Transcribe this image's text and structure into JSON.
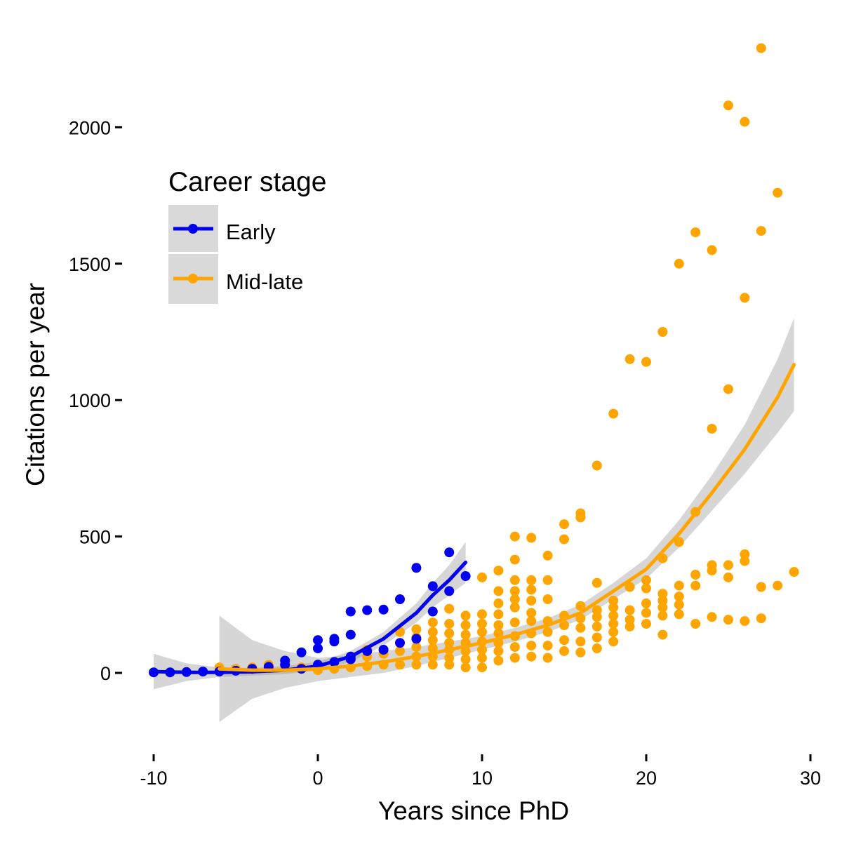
{
  "chart_data": {
    "type": "scatter",
    "title": "",
    "xlabel": "Years since PhD",
    "ylabel": "Citations per year",
    "xlim": [
      -10.8,
      30
    ],
    "ylim": [
      -280,
      2330
    ],
    "x_ticks": [
      -10,
      0,
      10,
      20,
      30
    ],
    "y_ticks": [
      0,
      500,
      1000,
      1500,
      2000
    ],
    "grid": false,
    "legend": {
      "title": "Career stage",
      "placement": "upper-left"
    },
    "series": [
      {
        "name": "Early",
        "color": "#0000ee",
        "points": [
          [
            -10,
            2
          ],
          [
            -9,
            2
          ],
          [
            -8,
            3
          ],
          [
            -7,
            5
          ],
          [
            -6,
            5
          ],
          [
            -5,
            8
          ],
          [
            -4,
            15
          ],
          [
            -3,
            22
          ],
          [
            -2,
            30
          ],
          [
            -2,
            45
          ],
          [
            -1,
            15
          ],
          [
            -1,
            75
          ],
          [
            0,
            30
          ],
          [
            0,
            90
          ],
          [
            0,
            120
          ],
          [
            1,
            40
          ],
          [
            1,
            115
          ],
          [
            1,
            125
          ],
          [
            2,
            50
          ],
          [
            2,
            60
          ],
          [
            2,
            140
          ],
          [
            2,
            225
          ],
          [
            3,
            80
          ],
          [
            3,
            230
          ],
          [
            4,
            85
          ],
          [
            4,
            232
          ],
          [
            5,
            110
          ],
          [
            5,
            270
          ],
          [
            6,
            125
          ],
          [
            6,
            385
          ],
          [
            7,
            225
          ],
          [
            7,
            318
          ],
          [
            8,
            300
          ],
          [
            8,
            442
          ],
          [
            9,
            355
          ]
        ],
        "fit": [
          [
            -10,
            5
          ],
          [
            -8,
            2
          ],
          [
            -6,
            2
          ],
          [
            -4,
            4
          ],
          [
            -2,
            10
          ],
          [
            0,
            25
          ],
          [
            2,
            60
          ],
          [
            4,
            125
          ],
          [
            6,
            220
          ],
          [
            7,
            285
          ],
          [
            8,
            340
          ],
          [
            9,
            405
          ]
        ],
        "fit_band": [
          [
            -10,
            -60,
            70
          ],
          [
            -8,
            -30,
            35
          ],
          [
            -6,
            -15,
            20
          ],
          [
            -4,
            -10,
            18
          ],
          [
            -2,
            -5,
            25
          ],
          [
            0,
            10,
            40
          ],
          [
            2,
            40,
            80
          ],
          [
            4,
            100,
            150
          ],
          [
            6,
            185,
            255
          ],
          [
            7,
            240,
            330
          ],
          [
            8,
            285,
            395
          ],
          [
            9,
            330,
            480
          ]
        ]
      },
      {
        "name": "Mid-late",
        "color": "#ffa500",
        "points": [
          [
            -6,
            20
          ],
          [
            -5,
            15
          ],
          [
            -4,
            20
          ],
          [
            -3,
            30
          ],
          [
            -2,
            25
          ],
          [
            -1,
            20
          ],
          [
            0,
            10
          ],
          [
            0,
            30
          ],
          [
            1,
            15
          ],
          [
            1,
            40
          ],
          [
            2,
            20
          ],
          [
            2,
            50
          ],
          [
            3,
            25
          ],
          [
            3,
            60
          ],
          [
            3,
            85
          ],
          [
            4,
            30
          ],
          [
            4,
            70
          ],
          [
            5,
            30
          ],
          [
            5,
            80
          ],
          [
            5,
            150
          ],
          [
            6,
            30
          ],
          [
            6,
            60
          ],
          [
            6,
            95
          ],
          [
            6,
            130
          ],
          [
            6,
            160
          ],
          [
            7,
            30
          ],
          [
            7,
            60
          ],
          [
            7,
            90
          ],
          [
            7,
            120
          ],
          [
            7,
            150
          ],
          [
            7,
            185
          ],
          [
            8,
            30
          ],
          [
            8,
            55
          ],
          [
            8,
            85
          ],
          [
            8,
            110
          ],
          [
            8,
            145
          ],
          [
            8,
            180
          ],
          [
            8,
            235
          ],
          [
            9,
            20
          ],
          [
            9,
            50
          ],
          [
            9,
            80
          ],
          [
            9,
            110
          ],
          [
            9,
            140
          ],
          [
            9,
            175
          ],
          [
            9,
            210
          ],
          [
            10,
            20
          ],
          [
            10,
            55
          ],
          [
            10,
            85
          ],
          [
            10,
            115
          ],
          [
            10,
            150
          ],
          [
            10,
            180
          ],
          [
            10,
            215
          ],
          [
            10,
            350
          ],
          [
            11,
            45
          ],
          [
            11,
            80
          ],
          [
            11,
            110
          ],
          [
            11,
            145
          ],
          [
            11,
            175
          ],
          [
            11,
            215
          ],
          [
            11,
            255
          ],
          [
            11,
            300
          ],
          [
            11,
            375
          ],
          [
            12,
            55
          ],
          [
            12,
            95
          ],
          [
            12,
            135
          ],
          [
            12,
            185
          ],
          [
            12,
            240
          ],
          [
            12,
            270
          ],
          [
            12,
            300
          ],
          [
            12,
            340
          ],
          [
            12,
            415
          ],
          [
            12,
            500
          ],
          [
            13,
            60
          ],
          [
            13,
            100
          ],
          [
            13,
            145
          ],
          [
            13,
            190
          ],
          [
            13,
            220
          ],
          [
            13,
            265
          ],
          [
            13,
            305
          ],
          [
            13,
            340
          ],
          [
            13,
            495
          ],
          [
            14,
            55
          ],
          [
            14,
            100
          ],
          [
            14,
            150
          ],
          [
            14,
            190
          ],
          [
            14,
            270
          ],
          [
            14,
            340
          ],
          [
            14,
            430
          ],
          [
            15,
            80
          ],
          [
            15,
            120
          ],
          [
            15,
            175
          ],
          [
            15,
            210
          ],
          [
            15,
            490
          ],
          [
            15,
            545
          ],
          [
            16,
            75
          ],
          [
            16,
            115
          ],
          [
            16,
            165
          ],
          [
            16,
            200
          ],
          [
            16,
            245
          ],
          [
            16,
            570
          ],
          [
            16,
            585
          ],
          [
            17,
            90
          ],
          [
            17,
            130
          ],
          [
            17,
            170
          ],
          [
            17,
            205
          ],
          [
            17,
            230
          ],
          [
            17,
            330
          ],
          [
            17,
            760
          ],
          [
            18,
            115
          ],
          [
            18,
            150
          ],
          [
            18,
            180
          ],
          [
            18,
            210
          ],
          [
            18,
            240
          ],
          [
            18,
            265
          ],
          [
            18,
            950
          ],
          [
            19,
            170
          ],
          [
            19,
            195
          ],
          [
            19,
            230
          ],
          [
            19,
            315
          ],
          [
            19,
            1150
          ],
          [
            20,
            180
          ],
          [
            20,
            220
          ],
          [
            20,
            255
          ],
          [
            20,
            310
          ],
          [
            20,
            340
          ],
          [
            20,
            1140
          ],
          [
            21,
            140
          ],
          [
            21,
            210
          ],
          [
            21,
            240
          ],
          [
            21,
            265
          ],
          [
            21,
            290
          ],
          [
            21,
            420
          ],
          [
            21,
            1250
          ],
          [
            22,
            215
          ],
          [
            22,
            250
          ],
          [
            22,
            280
          ],
          [
            22,
            320
          ],
          [
            22,
            480
          ],
          [
            22,
            1500
          ],
          [
            23,
            180
          ],
          [
            23,
            320
          ],
          [
            23,
            360
          ],
          [
            23,
            590
          ],
          [
            23,
            1615
          ],
          [
            24,
            205
          ],
          [
            24,
            375
          ],
          [
            24,
            395
          ],
          [
            24,
            895
          ],
          [
            24,
            1550
          ],
          [
            25,
            195
          ],
          [
            25,
            350
          ],
          [
            25,
            395
          ],
          [
            25,
            1040
          ],
          [
            25,
            2080
          ],
          [
            26,
            190
          ],
          [
            26,
            410
          ],
          [
            26,
            435
          ],
          [
            26,
            1375
          ],
          [
            26,
            2020
          ],
          [
            27,
            200
          ],
          [
            27,
            315
          ],
          [
            27,
            1620
          ],
          [
            27,
            2290
          ],
          [
            28,
            320
          ],
          [
            28,
            1760
          ],
          [
            29,
            370
          ]
        ],
        "fit": [
          [
            -6,
            15
          ],
          [
            -4,
            10
          ],
          [
            -2,
            10
          ],
          [
            0,
            15
          ],
          [
            2,
            25
          ],
          [
            4,
            40
          ],
          [
            6,
            60
          ],
          [
            8,
            85
          ],
          [
            10,
            110
          ],
          [
            12,
            140
          ],
          [
            14,
            175
          ],
          [
            16,
            220
          ],
          [
            18,
            300
          ],
          [
            20,
            380
          ],
          [
            22,
            510
          ],
          [
            24,
            660
          ],
          [
            26,
            820
          ],
          [
            28,
            1010
          ],
          [
            29,
            1130
          ]
        ],
        "fit_band": [
          [
            -6,
            -180,
            210
          ],
          [
            -4,
            -95,
            120
          ],
          [
            -2,
            -55,
            80
          ],
          [
            0,
            -30,
            55
          ],
          [
            2,
            -15,
            65
          ],
          [
            4,
            0,
            80
          ],
          [
            6,
            25,
            95
          ],
          [
            8,
            55,
            115
          ],
          [
            10,
            85,
            135
          ],
          [
            12,
            115,
            165
          ],
          [
            14,
            150,
            200
          ],
          [
            16,
            195,
            250
          ],
          [
            18,
            270,
            330
          ],
          [
            20,
            345,
            420
          ],
          [
            22,
            460,
            560
          ],
          [
            24,
            595,
            725
          ],
          [
            26,
            730,
            910
          ],
          [
            28,
            880,
            1150
          ],
          [
            29,
            960,
            1300
          ]
        ]
      }
    ]
  }
}
